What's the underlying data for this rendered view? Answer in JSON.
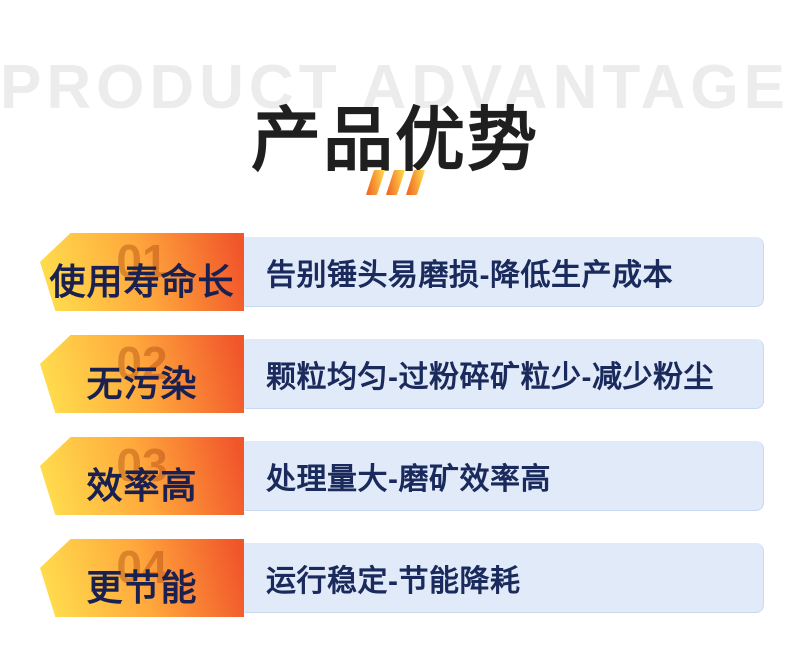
{
  "header": {
    "watermark": "PRODUCT ADVANTAGE",
    "title": "产品优势"
  },
  "decor": {
    "slash_count": 3
  },
  "advantages": [
    {
      "number": "01",
      "label": "使用寿命长",
      "description": "告别锤头易磨损-降低生产成本"
    },
    {
      "number": "02",
      "label": "无污染",
      "description": "颗粒均匀-过粉碎矿粒少-减少粉尘"
    },
    {
      "number": "03",
      "label": "效率高",
      "description": "处理量大-磨矿效率高"
    },
    {
      "number": "04",
      "label": "更节能",
      "description": "运行稳定-节能降耗"
    }
  ],
  "colors": {
    "badge_gradient_start": "#ffe04e",
    "badge_gradient_mid": "#ffa83c",
    "badge_gradient_end": "#f1562b",
    "badge_label": "#1a2150",
    "badge_number": "rgba(163,62,14,0.38)",
    "box_fill": "#e0eaf8",
    "box_edge": "#c9d9ee",
    "box_text": "#1a2a5c",
    "title": "#1f1f1f",
    "watermark": "#ececec",
    "slash_orange": "#ef6a25",
    "slash_yellow": "#ffd84a"
  }
}
